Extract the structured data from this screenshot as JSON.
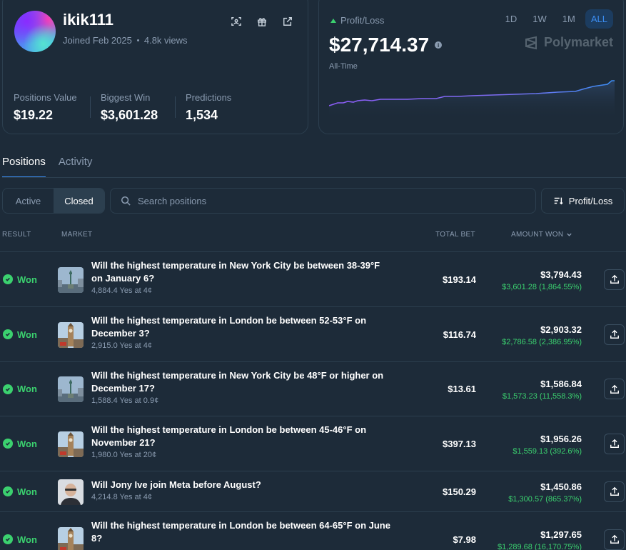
{
  "profile": {
    "username": "ikik111",
    "joined": "Joined Feb 2025",
    "views": "4.8k views",
    "icons": [
      "scan-icon",
      "gift-icon",
      "external-link-icon"
    ],
    "stats": [
      {
        "label": "Positions Value",
        "value": "$19.22"
      },
      {
        "label": "Biggest Win",
        "value": "$3,601.28"
      },
      {
        "label": "Predictions",
        "value": "1,534"
      }
    ]
  },
  "pnl": {
    "label": "Profit/Loss",
    "value": "$27,714.37",
    "period": "All-Time",
    "ranges": [
      "1D",
      "1W",
      "1M",
      "ALL"
    ],
    "active_range": "ALL",
    "brand": "Polymarket",
    "line_color": "#8b5cf6",
    "line_color_end": "#3b8cf0"
  },
  "tabs": [
    "Positions",
    "Activity"
  ],
  "filter": {
    "options": [
      "Active",
      "Closed"
    ],
    "selected": "Closed"
  },
  "search": {
    "placeholder": "Search positions"
  },
  "sort_button": "Profit/Loss",
  "columns": {
    "result": "RESULT",
    "market": "MARKET",
    "total_bet": "TOTAL BET",
    "amount_won": "AMOUNT WON"
  },
  "rows": [
    {
      "result": "Won",
      "title_line1": "Will the highest temperature in New York City be between 38-39°F",
      "title_line2": "on January 6?",
      "sub": "4,884.4 Yes at 4¢",
      "bet": "$193.14",
      "amount": "$3,794.43",
      "gain": "$3,601.28 (1,864.55%)",
      "thumb": "statue-of-liberty"
    },
    {
      "result": "Won",
      "title_line1": "Will the highest temperature in London be between 52-53°F on",
      "title_line2": "December 3?",
      "sub": "2,915.0 Yes at 4¢",
      "bet": "$116.74",
      "amount": "$2,903.32",
      "gain": "$2,786.58 (2,386.95%)",
      "thumb": "big-ben"
    },
    {
      "result": "Won",
      "title_line1": "Will the highest temperature in New York City be 48°F or higher on",
      "title_line2": "December 17?",
      "sub": "1,588.4 Yes at 0.9¢",
      "bet": "$13.61",
      "amount": "$1,586.84",
      "gain": "$1,573.23 (11,558.3%)",
      "thumb": "statue-of-liberty"
    },
    {
      "result": "Won",
      "title_line1": "Will the highest temperature in London be between 45-46°F on",
      "title_line2": "November 21?",
      "sub": "1,980.0 Yes at 20¢",
      "bet": "$397.13",
      "amount": "$1,956.26",
      "gain": "$1,559.13 (392.6%)",
      "thumb": "big-ben"
    },
    {
      "result": "Won",
      "title_line1": "Will Jony Ive join Meta before August?",
      "title_line2": "",
      "sub": "4,214.8 Yes at 4¢",
      "bet": "$150.29",
      "amount": "$1,450.86",
      "gain": "$1,300.57 (865.37%)",
      "thumb": "portrait"
    },
    {
      "result": "Won",
      "title_line1": "Will the highest temperature in London be between 64-65°F on June",
      "title_line2": "8?",
      "sub": "",
      "bet": "$7.98",
      "amount": "$1,297.65",
      "gain": "$1,289.68 (16,170.75%)",
      "thumb": "big-ben"
    }
  ]
}
